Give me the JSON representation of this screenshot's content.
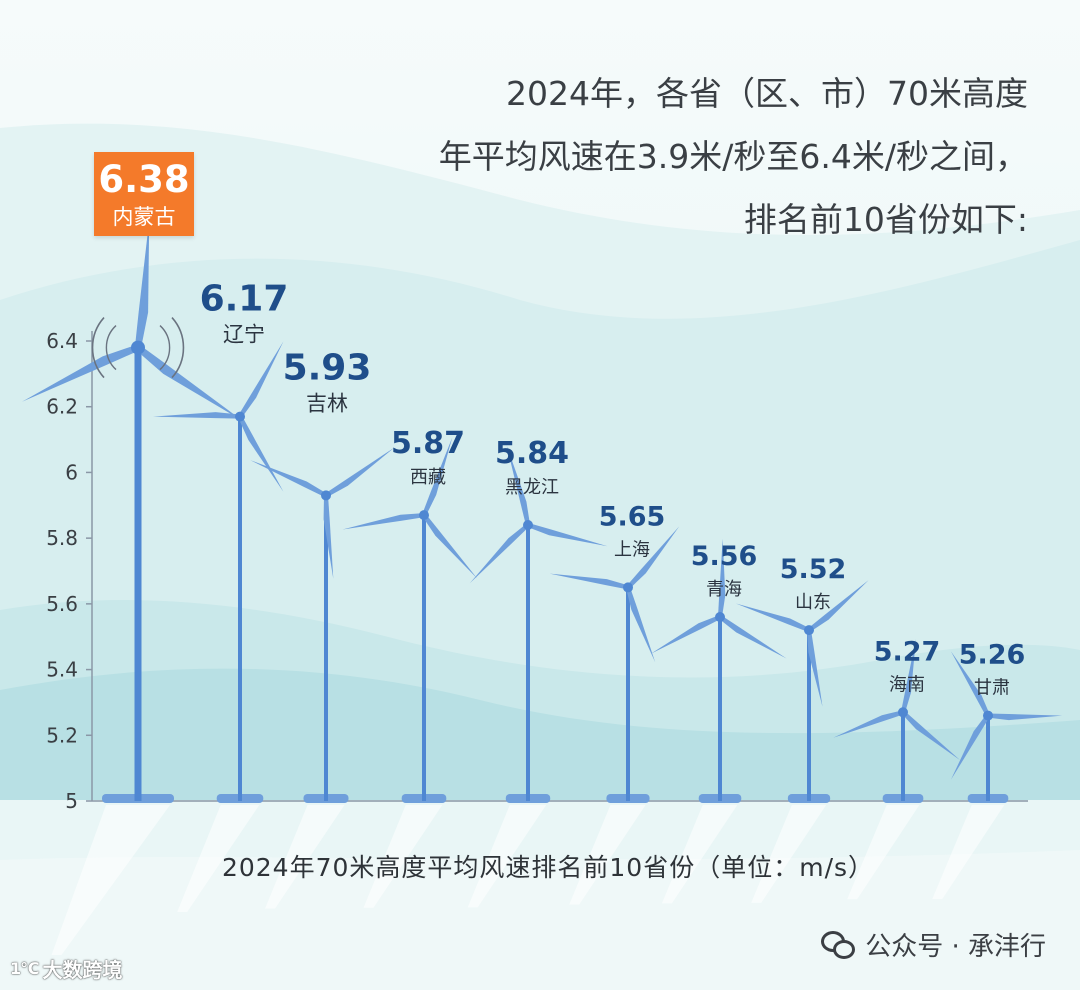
{
  "headline": {
    "line1": "2024年，各省（区、市）70米高度",
    "line2": "年平均风速在3.9米/秒至6.4米/秒之间，",
    "line3": "排名前10省份如下:"
  },
  "highlight": {
    "value": "6.38",
    "label": "内蒙古"
  },
  "chart_data": {
    "type": "bar",
    "title": "2024年70米高度平均风速排名前10省份（单位：m/s）",
    "xlabel": "",
    "ylabel": "",
    "categories": [
      "内蒙古",
      "辽宁",
      "吉林",
      "西藏",
      "黑龙江",
      "上海",
      "青海",
      "山东",
      "海南",
      "甘肃"
    ],
    "values": [
      6.38,
      6.17,
      5.93,
      5.87,
      5.84,
      5.65,
      5.56,
      5.52,
      5.27,
      5.26
    ],
    "value_labels": [
      "6.38",
      "6.17",
      "5.93",
      "5.87",
      "5.84",
      "5.65",
      "5.56",
      "5.52",
      "5.27",
      "5.26"
    ],
    "ylim": [
      5,
      6.4
    ],
    "yticks": [
      5,
      5.2,
      5.4,
      5.6,
      5.8,
      6,
      6.2,
      6.4
    ],
    "ytick_labels": [
      "5",
      "5.2",
      "5.4",
      "5.6",
      "5.8",
      "6",
      "6.2",
      "6.4"
    ],
    "grid": false,
    "mark": "wind-turbine"
  },
  "footer": {
    "account": "公众号 · 承沣行"
  },
  "watermark": {
    "logo": "1℃",
    "text": "大数跨境"
  },
  "colors": {
    "turbine": "#6f9fdb",
    "turbine_dark": "#4f87d2",
    "value_text": "#1f4e8a",
    "highlight": "#f47a2a",
    "axis": "#8a97a6"
  }
}
